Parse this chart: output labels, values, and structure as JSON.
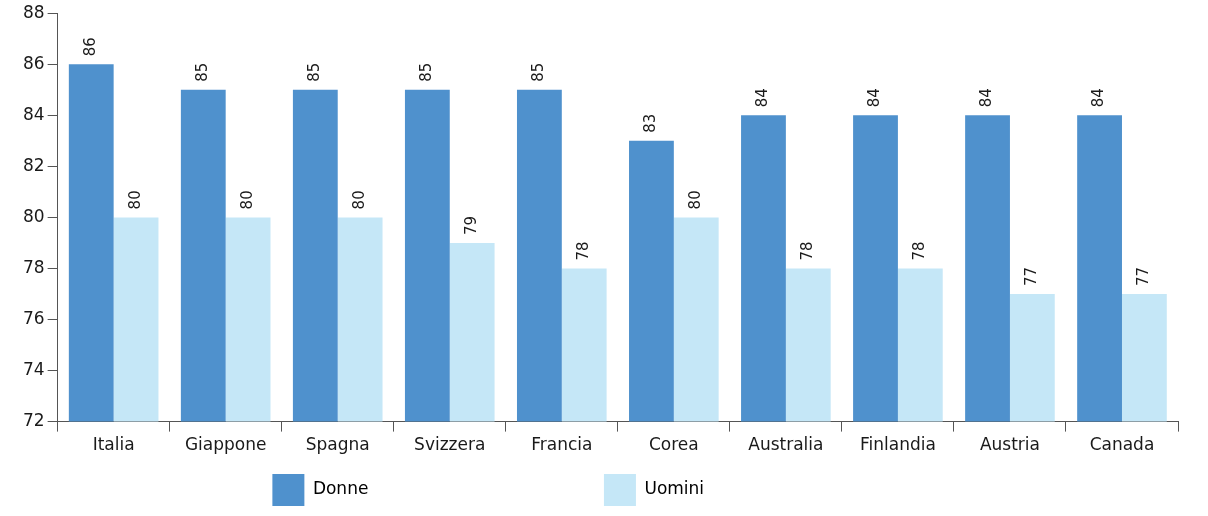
{
  "chart_data": {
    "type": "bar",
    "categories": [
      "Italia",
      "Giappone",
      "Spagna",
      "Svizzera",
      "Francia",
      "Corea",
      "Australia",
      "Finlandia",
      "Austria",
      "Canada"
    ],
    "series": [
      {
        "name": "Donne",
        "color": "#4f91cd",
        "values": [
          86,
          85,
          85,
          85,
          85,
          83,
          84,
          84,
          84,
          84
        ]
      },
      {
        "name": "Uomini",
        "color": "#c5e7f7",
        "values": [
          80,
          80,
          80,
          79,
          78,
          80,
          78,
          78,
          77,
          77
        ]
      }
    ],
    "ylim": [
      72,
      88
    ],
    "yticks": [
      72,
      74,
      76,
      78,
      80,
      82,
      84,
      86,
      88
    ],
    "grid": false,
    "legend": "bottom",
    "data_labels": true
  }
}
